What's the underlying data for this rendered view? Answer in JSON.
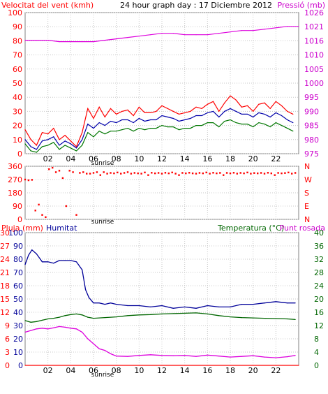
{
  "header": {
    "left_label": "Velocitat del vent (kmh)",
    "center_label": "24 hour graph day : 17 Diciembre 2012",
    "right_label": "Pressió (mb)"
  },
  "colors": {
    "background": "#ffffff",
    "frame": "#808080",
    "grid": "#c8c8c8",
    "wind": "#dd0000",
    "gust": "#ff0000",
    "avg_wind": "#0000aa",
    "avg_wind_low": "#007700",
    "pressure": "#dd00dd",
    "humidity": "#000099",
    "temperature": "#006600",
    "dewpoint": "#dd00dd",
    "rain": "#ff0000",
    "direction": "#ff0000",
    "label_red": "#ff0000",
    "label_magenta": "#cc00cc",
    "label_blue": "#000099",
    "label_green": "#006600"
  },
  "chart_data": [
    {
      "type": "line",
      "name": "wind-pressure-panel",
      "left_axis": {
        "label": "Velocitat del vent (kmh)",
        "ticks": [
          0,
          10,
          20,
          30,
          40,
          50,
          60,
          70,
          80,
          90,
          100
        ],
        "ylim": [
          0,
          100
        ]
      },
      "right_axis": {
        "label": "Pressió (mb)",
        "ticks": [
          975,
          980,
          985,
          990,
          995,
          1000,
          1005,
          1010,
          1016,
          1021,
          1026
        ],
        "ylim": [
          975,
          1026
        ]
      },
      "x_ticks": [
        "02",
        "04",
        "06",
        "08",
        "10",
        "12",
        "14",
        "16",
        "18",
        "20",
        "22"
      ],
      "x_annotation": "sunrise",
      "series": [
        {
          "name": "gust",
          "axis": "left",
          "x": [
            0,
            0.5,
            1,
            1.5,
            2,
            2.5,
            3,
            3.5,
            4,
            4.5,
            5,
            5.5,
            6,
            6.5,
            7,
            7.5,
            8,
            8.5,
            9,
            9.5,
            10,
            10.5,
            11,
            11.5,
            12,
            12.5,
            13,
            13.5,
            14,
            14.5,
            15,
            15.5,
            16,
            16.5,
            17,
            17.5,
            18,
            18.5,
            19,
            19.5,
            20,
            20.5,
            21,
            21.5,
            22,
            22.5,
            23,
            23.5
          ],
          "values": [
            17,
            10,
            6,
            15,
            14,
            18,
            10,
            13,
            9,
            5,
            15,
            32,
            25,
            33,
            26,
            32,
            28,
            30,
            31,
            27,
            33,
            29,
            29,
            30,
            34,
            32,
            30,
            28,
            29,
            30,
            33,
            32,
            35,
            37,
            30,
            36,
            41,
            38,
            33,
            34,
            30,
            35,
            36,
            32,
            37,
            34,
            30,
            28
          ]
        },
        {
          "name": "avg_wind",
          "axis": "left",
          "x": [
            0,
            0.5,
            1,
            1.5,
            2,
            2.5,
            3,
            3.5,
            4,
            4.5,
            5,
            5.5,
            6,
            6.5,
            7,
            7.5,
            8,
            8.5,
            9,
            9.5,
            10,
            10.5,
            11,
            11.5,
            12,
            12.5,
            13,
            13.5,
            14,
            14.5,
            15,
            15.5,
            16,
            16.5,
            17,
            17.5,
            18,
            18.5,
            19,
            19.5,
            20,
            20.5,
            21,
            21.5,
            22,
            22.5,
            23,
            23.5
          ],
          "values": [
            10,
            5,
            3,
            9,
            10,
            12,
            6,
            9,
            7,
            4,
            10,
            21,
            18,
            22,
            20,
            23,
            22,
            24,
            24,
            22,
            25,
            23,
            24,
            24,
            27,
            26,
            25,
            23,
            24,
            25,
            27,
            27,
            29,
            30,
            26,
            30,
            32,
            30,
            28,
            28,
            26,
            29,
            28,
            26,
            29,
            27,
            24,
            22
          ]
        },
        {
          "name": "wind_low",
          "axis": "left",
          "x": [
            0,
            0.5,
            1,
            1.5,
            2,
            2.5,
            3,
            3.5,
            4,
            4.5,
            5,
            5.5,
            6,
            6.5,
            7,
            7.5,
            8,
            8.5,
            9,
            9.5,
            10,
            10.5,
            11,
            11.5,
            12,
            12.5,
            13,
            13.5,
            14,
            14.5,
            15,
            15.5,
            16,
            16.5,
            17,
            17.5,
            18,
            18.5,
            19,
            19.5,
            20,
            20.5,
            21,
            21.5,
            22,
            22.5,
            23,
            23.5
          ],
          "values": [
            7,
            2,
            1,
            5,
            6,
            8,
            3,
            6,
            4,
            2,
            6,
            15,
            12,
            16,
            14,
            16,
            16,
            17,
            18,
            16,
            18,
            17,
            18,
            18,
            20,
            19,
            19,
            17,
            18,
            18,
            20,
            20,
            22,
            22,
            19,
            23,
            24,
            22,
            21,
            21,
            19,
            22,
            21,
            19,
            22,
            20,
            18,
            16
          ]
        },
        {
          "name": "pressure",
          "axis": "right",
          "x": [
            0,
            1,
            2,
            3,
            4,
            5,
            6,
            7,
            8,
            9,
            10,
            11,
            12,
            13,
            14,
            15,
            16,
            17,
            18,
            19,
            20,
            21,
            22,
            23,
            24
          ],
          "values": [
            1016,
            1016,
            1016,
            1015.5,
            1015.5,
            1015.5,
            1015.5,
            1016,
            1016.5,
            1017,
            1017.5,
            1018,
            1018.5,
            1018.5,
            1018,
            1018,
            1018,
            1018.5,
            1019,
            1019.5,
            1019.5,
            1020,
            1020.5,
            1021,
            1021
          ]
        }
      ]
    },
    {
      "type": "scatter",
      "name": "wind-direction-panel",
      "left_axis": {
        "ticks": [
          0,
          90,
          180,
          270,
          360
        ],
        "ylim": [
          0,
          360
        ]
      },
      "right_axis": {
        "ticks": [
          "N",
          "W",
          "S",
          "E",
          "N"
        ]
      },
      "x_ticks": [],
      "x_annotation": "sunrise",
      "series": [
        {
          "name": "direction",
          "x": [
            0,
            0.3,
            0.6,
            0.9,
            1.2,
            1.5,
            1.8,
            2.1,
            2.4,
            2.7,
            3.0,
            3.3,
            3.6,
            3.9,
            4.2,
            4.5,
            4.8,
            5.1,
            5.4,
            5.7,
            6.0,
            6.3,
            6.6,
            6.9,
            7.2,
            7.5,
            7.8,
            8.1,
            8.4,
            8.7,
            9.0,
            9.3,
            9.6,
            9.9,
            10.2,
            10.5,
            10.8,
            11.1,
            11.4,
            11.7,
            12.0,
            12.3,
            12.6,
            12.9,
            13.2,
            13.5,
            13.8,
            14.1,
            14.4,
            14.7,
            15.0,
            15.3,
            15.6,
            15.9,
            16.2,
            16.5,
            16.8,
            17.1,
            17.4,
            17.7,
            18.0,
            18.3,
            18.6,
            18.9,
            19.2,
            19.5,
            19.8,
            20.1,
            20.4,
            20.7,
            21.0,
            21.3,
            21.6,
            21.9,
            22.2,
            22.5,
            22.8,
            23.1,
            23.4,
            23.7
          ],
          "values": [
            270,
            265,
            268,
            60,
            100,
            30,
            15,
            340,
            350,
            320,
            330,
            280,
            90,
            330,
            320,
            30,
            315,
            320,
            310,
            310,
            315,
            320,
            300,
            320,
            310,
            315,
            312,
            318,
            310,
            315,
            320,
            310,
            315,
            312,
            310,
            318,
            300,
            316,
            312,
            315,
            310,
            316,
            312,
            318,
            310,
            300,
            315,
            312,
            316,
            312,
            310,
            315,
            312,
            318,
            310,
            316,
            312,
            315,
            300,
            315,
            312,
            316,
            310,
            315,
            312,
            318,
            310,
            314,
            312,
            315,
            310,
            316,
            312,
            300,
            315,
            312,
            314,
            318,
            310,
            315
          ]
        }
      ]
    },
    {
      "type": "line",
      "name": "rain-humidity-temperature-panel",
      "left_axis": {
        "label": "Pluja (mm)",
        "ticks": [
          0,
          3,
          6,
          9,
          12,
          15,
          18,
          21,
          24,
          27,
          30
        ],
        "ylim": [
          0,
          30
        ]
      },
      "left_axis_2": {
        "label": "Humitat",
        "ticks": [
          0,
          10,
          20,
          30,
          40,
          50,
          60,
          70,
          80,
          90,
          100
        ],
        "ylim": [
          0,
          100
        ]
      },
      "right_axis": {
        "label": "Temperatura (°C)",
        "label_2": "Punt rosada",
        "ticks": [
          0,
          4,
          8,
          12,
          16,
          20,
          24,
          28,
          32,
          36,
          40
        ],
        "ylim": [
          0,
          40
        ]
      },
      "x_ticks": [
        "02",
        "04",
        "06",
        "08",
        "10",
        "12",
        "14",
        "16",
        "18",
        "20",
        "22"
      ],
      "x_annotation": "sunrise",
      "series": [
        {
          "name": "humidity",
          "axis": "left_2",
          "x": [
            0,
            0.3,
            0.6,
            1,
            1.5,
            2,
            2.5,
            3,
            3.5,
            4,
            4.5,
            5,
            5.3,
            5.6,
            6,
            6.5,
            7,
            7.5,
            8,
            9,
            10,
            11,
            12,
            13,
            14,
            15,
            16,
            17,
            18,
            19,
            20,
            21,
            22,
            23,
            23.7
          ],
          "values": [
            76,
            83,
            87,
            84,
            78,
            78,
            77,
            79,
            79,
            79,
            78,
            72,
            57,
            51,
            47,
            47,
            46,
            47,
            46,
            45,
            45,
            44,
            45,
            43,
            44,
            43,
            45,
            44,
            44,
            46,
            46,
            47,
            48,
            47,
            47
          ]
        },
        {
          "name": "temperature",
          "axis": "right",
          "x": [
            0,
            0.5,
            1,
            1.5,
            2,
            2.5,
            3,
            3.5,
            4,
            4.5,
            5,
            5.5,
            6,
            7,
            8,
            9,
            10,
            11,
            12,
            13,
            14,
            15,
            16,
            17,
            18,
            19,
            20,
            21,
            22,
            23,
            23.7
          ],
          "values": [
            13.5,
            13,
            13.2,
            13.6,
            14,
            14.2,
            14.5,
            15,
            15.3,
            15.5,
            15.2,
            14.5,
            14.2,
            14.4,
            14.6,
            15,
            15.2,
            15.3,
            15.5,
            15.6,
            15.7,
            15.8,
            15.5,
            15,
            14.6,
            14.4,
            14.3,
            14.2,
            14.1,
            14,
            13.8
          ]
        },
        {
          "name": "dewpoint",
          "axis": "right",
          "x": [
            0,
            0.5,
            1,
            1.5,
            2,
            2.5,
            3,
            3.5,
            4,
            4.5,
            5,
            5.5,
            6,
            6.5,
            7,
            7.5,
            8,
            9,
            10,
            11,
            12,
            13,
            14,
            15,
            16,
            17,
            18,
            19,
            20,
            21,
            22,
            23,
            23.7
          ],
          "values": [
            10,
            10.5,
            11,
            11.2,
            11,
            11.3,
            11.7,
            11.5,
            11.2,
            11,
            10,
            8,
            6.5,
            5,
            4.5,
            3.5,
            2.8,
            2.7,
            3,
            3.2,
            3,
            2.9,
            3,
            2.7,
            3.1,
            2.8,
            2.5,
            2.7,
            2.9,
            2.5,
            2.3,
            2.6,
            3
          ]
        },
        {
          "name": "rain",
          "axis": "left",
          "x": [
            0,
            24
          ],
          "values": [
            0,
            0
          ]
        }
      ]
    }
  ]
}
